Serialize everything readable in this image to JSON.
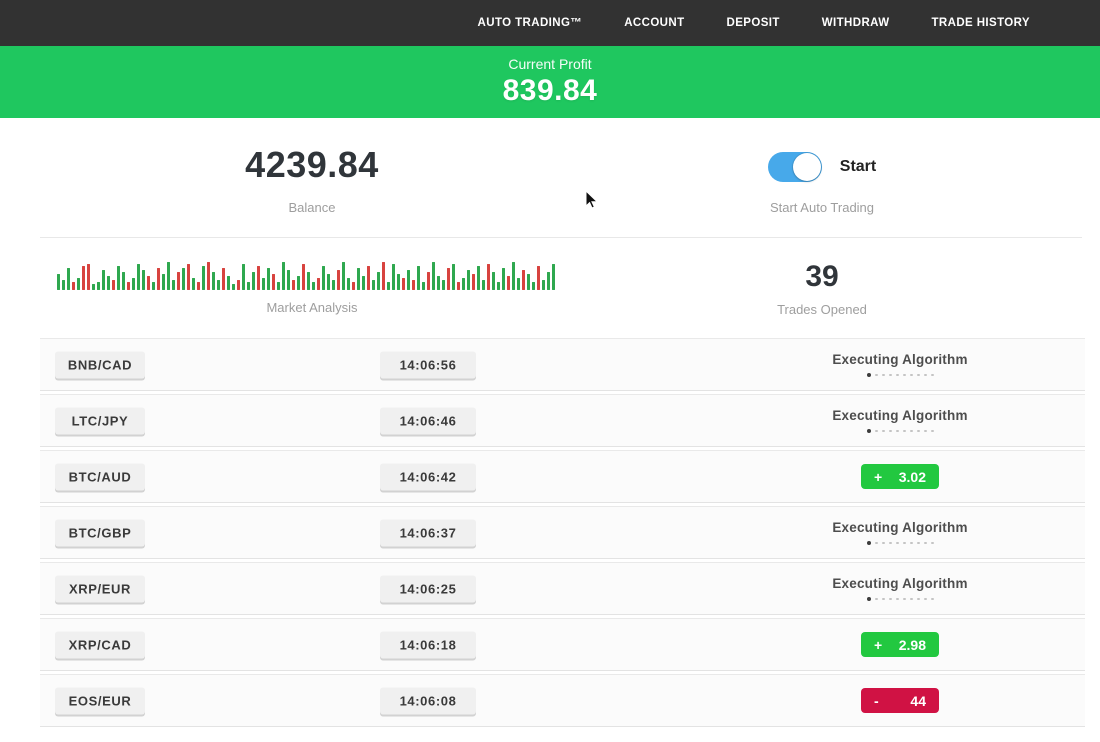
{
  "nav": {
    "items": [
      {
        "label": "AUTO TRADING™"
      },
      {
        "label": "ACCOUNT"
      },
      {
        "label": "DEPOSIT"
      },
      {
        "label": "WITHDRAW"
      },
      {
        "label": "TRADE HISTORY"
      }
    ]
  },
  "profit_banner": {
    "label": "Current Profit",
    "value": "839.84",
    "bg_color": "#1fc75f"
  },
  "balance": {
    "value": "4239.84",
    "label": "Balance"
  },
  "auto_trading": {
    "toggle_label": "Start",
    "caption": "Start Auto Trading",
    "toggle_state": "on",
    "toggle_color": "#47a9ea"
  },
  "market_analysis": {
    "label": "Market Analysis",
    "bar_colors": {
      "g": "#2fa84f",
      "r": "#d8433f"
    },
    "bars": [
      "g:16",
      "g:10",
      "g:22",
      "r:8",
      "g:12",
      "r:24",
      "r:26",
      "g:6",
      "g:8",
      "g:20",
      "g:14",
      "r:10",
      "g:24",
      "g:18",
      "r:8",
      "g:12",
      "g:26",
      "g:20",
      "r:14",
      "g:8",
      "r:22",
      "g:16",
      "g:28",
      "g:10",
      "r:18",
      "g:22",
      "r:26",
      "g:12",
      "r:8",
      "g:24",
      "r:28",
      "g:18",
      "g:10",
      "r:22",
      "g:14",
      "g:6",
      "r:10",
      "g:26",
      "g:8",
      "g:18",
      "r:24",
      "g:12",
      "g:22",
      "r:16",
      "g:8",
      "g:28",
      "g:20",
      "r:10",
      "g:14",
      "r:26",
      "g:18",
      "g:8",
      "r:12",
      "g:24",
      "g:16",
      "g:10",
      "r:20",
      "g:28",
      "g:12",
      "r:8",
      "g:22",
      "g:14",
      "r:24",
      "g:10",
      "g:18",
      "r:28",
      "g:8",
      "g:26",
      "g:16",
      "r:12",
      "g:20",
      "r:10",
      "g:24",
      "g:8",
      "r:18",
      "g:28",
      "g:14",
      "g:10",
      "r:22",
      "g:26",
      "r:8",
      "g:12",
      "g:20",
      "r:16",
      "g:24",
      "g:10",
      "r:26",
      "g:18",
      "g:8",
      "g:22",
      "r:14",
      "g:28",
      "g:12",
      "r:20",
      "g:16",
      "g:8",
      "r:24",
      "g:10",
      "g:18",
      "g:26"
    ]
  },
  "trades_opened": {
    "value": "39",
    "label": "Trades Opened"
  },
  "status_colors": {
    "profit": "#22c840",
    "loss": "#d01244"
  },
  "executing_dots_count": 10,
  "trades": [
    {
      "pair": "BNB/CAD",
      "time": "14:06:56",
      "status": {
        "type": "executing",
        "label": "Executing Algorithm"
      }
    },
    {
      "pair": "LTC/JPY",
      "time": "14:06:46",
      "status": {
        "type": "executing",
        "label": "Executing Algorithm"
      }
    },
    {
      "pair": "BTC/AUD",
      "time": "14:06:42",
      "status": {
        "type": "profit",
        "sign": "+",
        "value": "3.02"
      }
    },
    {
      "pair": "BTC/GBP",
      "time": "14:06:37",
      "status": {
        "type": "executing",
        "label": "Executing Algorithm"
      }
    },
    {
      "pair": "XRP/EUR",
      "time": "14:06:25",
      "status": {
        "type": "executing",
        "label": "Executing Algorithm"
      }
    },
    {
      "pair": "XRP/CAD",
      "time": "14:06:18",
      "status": {
        "type": "profit",
        "sign": "+",
        "value": "2.98"
      }
    },
    {
      "pair": "EOS/EUR",
      "time": "14:06:08",
      "status": {
        "type": "loss",
        "sign": "-",
        "value": "44"
      }
    }
  ]
}
